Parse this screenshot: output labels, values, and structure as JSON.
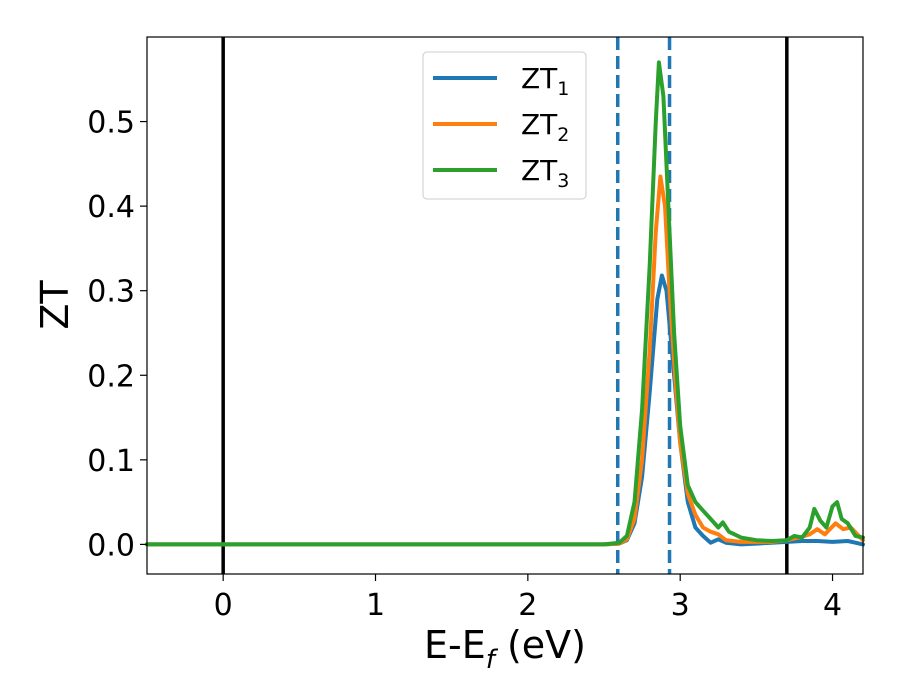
{
  "chart_data": {
    "type": "line",
    "xlabel_main": "E-E",
    "xlabel_sub": "f",
    "xlabel_unit": " (eV)",
    "ylabel": "ZT",
    "xlim": [
      -0.5,
      4.2
    ],
    "ylim": [
      -0.035,
      0.6
    ],
    "xticks": [
      0,
      1,
      2,
      3,
      4
    ],
    "xtick_labels": [
      "0",
      "1",
      "2",
      "3",
      "4"
    ],
    "yticks": [
      0.0,
      0.1,
      0.2,
      0.3,
      0.4,
      0.5
    ],
    "ytick_labels": [
      "0.0",
      "0.1",
      "0.2",
      "0.3",
      "0.4",
      "0.5"
    ],
    "grid": false,
    "legend_position": "upper-center",
    "vertical_lines": [
      {
        "x": 0.0,
        "style": "solid",
        "color": "#000000"
      },
      {
        "x": 3.7,
        "style": "solid",
        "color": "#000000"
      },
      {
        "x": 2.59,
        "style": "dashed",
        "color": "#1f77b4"
      },
      {
        "x": 2.93,
        "style": "dashed",
        "color": "#1f77b4"
      }
    ],
    "series": [
      {
        "name_main": "ZT",
        "name_sub": "1",
        "color": "#1f77b4",
        "points": [
          [
            -0.5,
            0
          ],
          [
            2.5,
            0
          ],
          [
            2.6,
            0.001
          ],
          [
            2.65,
            0.005
          ],
          [
            2.7,
            0.025
          ],
          [
            2.75,
            0.08
          ],
          [
            2.8,
            0.18
          ],
          [
            2.85,
            0.29
          ],
          [
            2.88,
            0.318
          ],
          [
            2.91,
            0.3
          ],
          [
            2.95,
            0.22
          ],
          [
            3.0,
            0.12
          ],
          [
            3.05,
            0.05
          ],
          [
            3.1,
            0.02
          ],
          [
            3.15,
            0.01
          ],
          [
            3.2,
            0.002
          ],
          [
            3.25,
            0.006
          ],
          [
            3.3,
            0.002
          ],
          [
            3.4,
            0
          ],
          [
            3.5,
            0.001
          ],
          [
            3.6,
            0.002
          ],
          [
            3.7,
            0.003
          ],
          [
            3.8,
            0.004
          ],
          [
            3.9,
            0.004
          ],
          [
            4.0,
            0.003
          ],
          [
            4.1,
            0.004
          ],
          [
            4.15,
            0.002
          ],
          [
            4.2,
            0
          ]
        ]
      },
      {
        "name_main": "ZT",
        "name_sub": "2",
        "color": "#ff7f0e",
        "points": [
          [
            -0.5,
            0
          ],
          [
            2.5,
            0
          ],
          [
            2.6,
            0.001
          ],
          [
            2.65,
            0.006
          ],
          [
            2.7,
            0.03
          ],
          [
            2.75,
            0.1
          ],
          [
            2.8,
            0.23
          ],
          [
            2.84,
            0.37
          ],
          [
            2.87,
            0.435
          ],
          [
            2.9,
            0.4
          ],
          [
            2.93,
            0.3
          ],
          [
            2.97,
            0.19
          ],
          [
            3.0,
            0.12
          ],
          [
            3.05,
            0.06
          ],
          [
            3.1,
            0.035
          ],
          [
            3.15,
            0.02
          ],
          [
            3.2,
            0.015
          ],
          [
            3.25,
            0.012
          ],
          [
            3.3,
            0.005
          ],
          [
            3.4,
            0.003
          ],
          [
            3.5,
            0.003
          ],
          [
            3.6,
            0.003
          ],
          [
            3.7,
            0.005
          ],
          [
            3.78,
            0.008
          ],
          [
            3.85,
            0.012
          ],
          [
            3.9,
            0.018
          ],
          [
            3.95,
            0.012
          ],
          [
            4.02,
            0.025
          ],
          [
            4.07,
            0.018
          ],
          [
            4.12,
            0.02
          ],
          [
            4.2,
            0.005
          ]
        ]
      },
      {
        "name_main": "ZT",
        "name_sub": "3",
        "color": "#2ca02c",
        "points": [
          [
            -0.5,
            0
          ],
          [
            2.5,
            0
          ],
          [
            2.6,
            0.002
          ],
          [
            2.65,
            0.01
          ],
          [
            2.7,
            0.05
          ],
          [
            2.75,
            0.16
          ],
          [
            2.8,
            0.33
          ],
          [
            2.84,
            0.5
          ],
          [
            2.86,
            0.57
          ],
          [
            2.89,
            0.53
          ],
          [
            2.92,
            0.41
          ],
          [
            2.96,
            0.25
          ],
          [
            3.0,
            0.14
          ],
          [
            3.05,
            0.07
          ],
          [
            3.1,
            0.05
          ],
          [
            3.15,
            0.04
          ],
          [
            3.2,
            0.03
          ],
          [
            3.25,
            0.02
          ],
          [
            3.28,
            0.026
          ],
          [
            3.32,
            0.015
          ],
          [
            3.4,
            0.008
          ],
          [
            3.5,
            0.005
          ],
          [
            3.6,
            0.004
          ],
          [
            3.7,
            0.005
          ],
          [
            3.75,
            0.01
          ],
          [
            3.8,
            0.008
          ],
          [
            3.85,
            0.02
          ],
          [
            3.88,
            0.042
          ],
          [
            3.92,
            0.028
          ],
          [
            3.96,
            0.02
          ],
          [
            4.0,
            0.045
          ],
          [
            4.03,
            0.05
          ],
          [
            4.06,
            0.03
          ],
          [
            4.1,
            0.025
          ],
          [
            4.15,
            0.01
          ],
          [
            4.2,
            0.008
          ]
        ]
      }
    ]
  }
}
